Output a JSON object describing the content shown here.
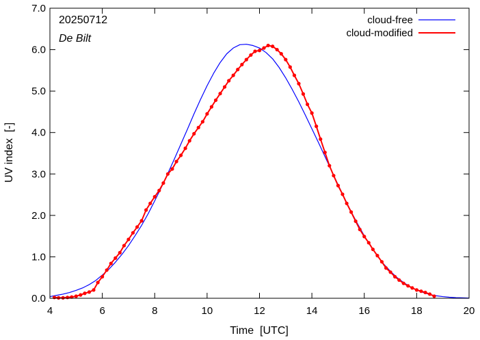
{
  "chart_data": {
    "type": "line",
    "title": "",
    "xlabel": "Time  [UTC]",
    "ylabel": "UV index  [-]",
    "xlim": [
      4,
      20
    ],
    "ylim": [
      0,
      7
    ],
    "x_ticks": [
      4,
      6,
      8,
      10,
      12,
      14,
      16,
      18,
      20
    ],
    "x_tick_labels": [
      "4",
      "6",
      "8",
      "10",
      "12",
      "14",
      "16",
      "18",
      "20"
    ],
    "y_ticks": [
      0,
      1,
      2,
      3,
      4,
      5,
      6,
      7
    ],
    "y_tick_labels": [
      "0.0",
      "1.0",
      "2.0",
      "3.0",
      "4.0",
      "5.0",
      "6.0",
      "7.0"
    ],
    "grid": false,
    "legend_position": "top-right",
    "annotations": {
      "date": "20250712",
      "location": "De Bilt"
    },
    "series": [
      {
        "name": "cloud-free",
        "color": "#0000ff",
        "markers": false,
        "x": [
          4.0,
          4.25,
          4.5,
          4.75,
          5.0,
          5.25,
          5.5,
          5.75,
          6.0,
          6.25,
          6.5,
          6.75,
          7.0,
          7.25,
          7.5,
          7.75,
          8.0,
          8.25,
          8.5,
          8.75,
          9.0,
          9.25,
          9.5,
          9.75,
          10.0,
          10.25,
          10.5,
          10.75,
          11.0,
          11.25,
          11.5,
          11.75,
          12.0,
          12.25,
          12.5,
          12.75,
          13.0,
          13.25,
          13.5,
          13.75,
          14.0,
          14.25,
          14.5,
          14.75,
          15.0,
          15.25,
          15.5,
          15.75,
          16.0,
          16.25,
          16.5,
          16.75,
          17.0,
          17.25,
          17.5,
          17.75,
          18.0,
          18.25,
          18.5,
          18.75,
          19.0,
          19.25,
          19.5,
          19.75,
          20.0
        ],
        "y": [
          0.04,
          0.07,
          0.1,
          0.14,
          0.19,
          0.25,
          0.33,
          0.43,
          0.56,
          0.7,
          0.87,
          1.06,
          1.27,
          1.51,
          1.76,
          2.04,
          2.35,
          2.67,
          3.01,
          3.36,
          3.72,
          4.08,
          4.45,
          4.8,
          5.13,
          5.43,
          5.69,
          5.9,
          6.04,
          6.12,
          6.13,
          6.1,
          6.04,
          5.93,
          5.78,
          5.57,
          5.32,
          5.04,
          4.74,
          4.42,
          4.09,
          3.76,
          3.42,
          3.08,
          2.74,
          2.41,
          2.09,
          1.79,
          1.51,
          1.25,
          1.02,
          0.82,
          0.65,
          0.5,
          0.38,
          0.28,
          0.2,
          0.14,
          0.09,
          0.06,
          0.04,
          0.025,
          0.015,
          0.01,
          0.005
        ]
      },
      {
        "name": "cloud-modified",
        "color": "#ff0000",
        "markers": true,
        "x": [
          4.17,
          4.33,
          4.5,
          4.67,
          4.83,
          5.0,
          5.17,
          5.33,
          5.5,
          5.67,
          5.83,
          6.0,
          6.17,
          6.33,
          6.5,
          6.67,
          6.83,
          7.0,
          7.17,
          7.33,
          7.5,
          7.67,
          7.83,
          8.0,
          8.17,
          8.33,
          8.5,
          8.67,
          8.83,
          9.0,
          9.17,
          9.33,
          9.5,
          9.67,
          9.83,
          10.0,
          10.17,
          10.33,
          10.5,
          10.67,
          10.83,
          11.0,
          11.17,
          11.33,
          11.5,
          11.67,
          11.83,
          12.0,
          12.17,
          12.33,
          12.5,
          12.67,
          12.83,
          13.0,
          13.17,
          13.33,
          13.5,
          13.67,
          13.83,
          14.0,
          14.17,
          14.33,
          14.5,
          14.67,
          14.83,
          15.0,
          15.17,
          15.33,
          15.5,
          15.67,
          15.83,
          16.0,
          16.17,
          16.33,
          16.5,
          16.67,
          16.83,
          17.0,
          17.17,
          17.33,
          17.5,
          17.67,
          17.83,
          18.0,
          18.17,
          18.33,
          18.5,
          18.67
        ],
        "y": [
          0.02,
          0.01,
          0.01,
          0.02,
          0.03,
          0.05,
          0.08,
          0.12,
          0.15,
          0.2,
          0.38,
          0.52,
          0.68,
          0.84,
          0.97,
          1.1,
          1.27,
          1.42,
          1.58,
          1.72,
          1.87,
          2.13,
          2.29,
          2.45,
          2.6,
          2.78,
          3.0,
          3.12,
          3.3,
          3.45,
          3.62,
          3.8,
          3.97,
          4.12,
          4.26,
          4.45,
          4.62,
          4.78,
          4.94,
          5.1,
          5.25,
          5.38,
          5.52,
          5.64,
          5.76,
          5.87,
          5.96,
          5.98,
          6.04,
          6.1,
          6.08,
          6.0,
          5.9,
          5.76,
          5.58,
          5.38,
          5.18,
          4.93,
          4.68,
          4.47,
          4.15,
          3.84,
          3.52,
          3.2,
          2.96,
          2.72,
          2.51,
          2.29,
          2.08,
          1.86,
          1.66,
          1.49,
          1.34,
          1.18,
          1.03,
          0.88,
          0.73,
          0.63,
          0.52,
          0.44,
          0.36,
          0.3,
          0.25,
          0.2,
          0.17,
          0.14,
          0.1,
          0.05
        ]
      }
    ]
  }
}
